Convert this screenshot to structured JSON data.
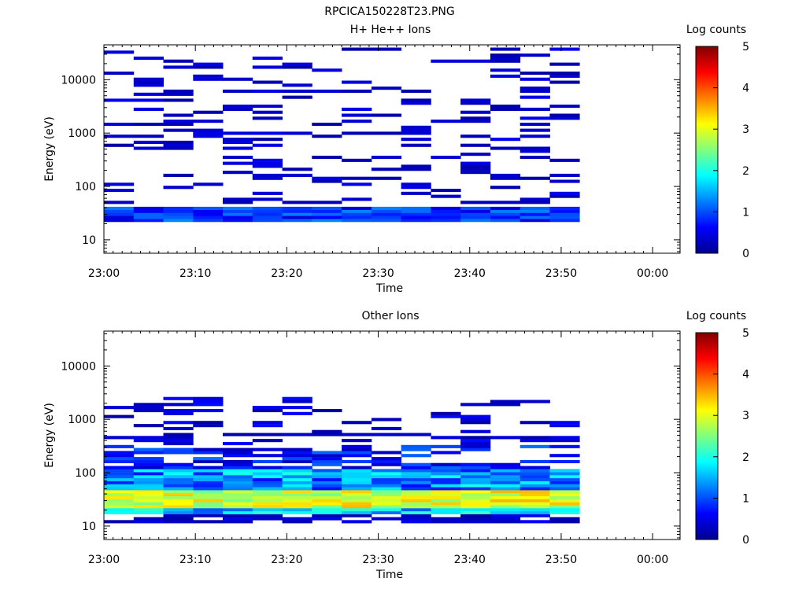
{
  "page_title": "RPCICA150228T23.PNG",
  "chart_data": [
    {
      "type": "heatmap",
      "title": "H+ He++ Ions",
      "xlabel": "Time",
      "ylabel": "Energy (eV)",
      "x_ticks": [
        "23:00",
        "23:10",
        "23:20",
        "23:30",
        "23:40",
        "23:50",
        "00:00"
      ],
      "y_ticks": [
        "10",
        "100",
        "1000",
        "10000"
      ],
      "y_scale": "log",
      "ylim": [
        5.6,
        45000
      ],
      "xlim": [
        "23:00",
        "00:03"
      ],
      "data_time_range": [
        "23:00",
        "23:52"
      ],
      "colorbar": {
        "label": "Log counts",
        "ticks": [
          "0",
          "1",
          "2",
          "3",
          "4",
          "5"
        ],
        "range": [
          0,
          5
        ],
        "colormap": "jet"
      },
      "description_of_values": "Sparse low counts (log 0-1) across 30 eV-40 keV; denser band near 25-40 eV at log ~0.5-1.2"
    },
    {
      "type": "heatmap",
      "title": "Other Ions",
      "xlabel": "Time",
      "ylabel": "Energy (eV)",
      "x_ticks": [
        "23:00",
        "23:10",
        "23:20",
        "23:30",
        "23:40",
        "23:50",
        "00:00"
      ],
      "y_ticks": [
        "10",
        "100",
        "1000",
        "10000"
      ],
      "y_scale": "log",
      "ylim": [
        5.6,
        45000
      ],
      "xlim": [
        "23:00",
        "00:03"
      ],
      "data_time_range": [
        "23:00",
        "23:52"
      ],
      "colorbar": {
        "label": "Log counts",
        "ticks": [
          "0",
          "1",
          "2",
          "3",
          "4",
          "5"
        ],
        "range": [
          0,
          5
        ],
        "colormap": "jet"
      },
      "description_of_values": "Intense band 20-40 eV (log ~2.5-3.5), moderate 50-200 eV (log ~1-2), sparse low counts up to ~2 keV"
    }
  ]
}
